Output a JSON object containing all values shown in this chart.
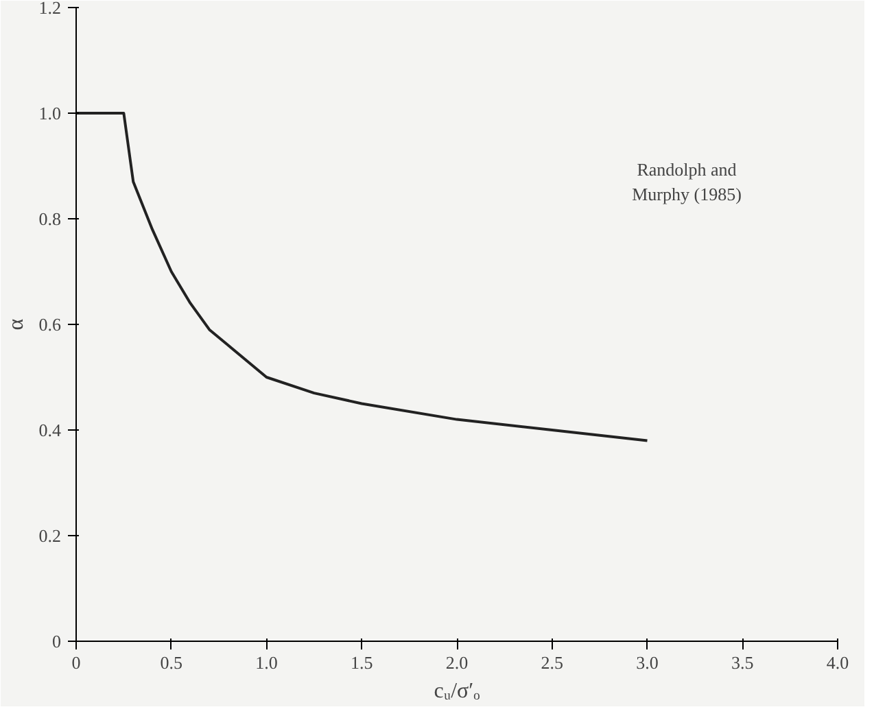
{
  "chart_data": {
    "type": "line",
    "xlabel": "cᵤ/σ′ₒ",
    "ylabel": "α",
    "x": [
      0,
      0.25,
      0.3,
      0.4,
      0.5,
      0.6,
      0.7,
      0.8,
      1.0,
      1.25,
      1.5,
      2.0,
      2.5,
      3.0
    ],
    "series": [
      {
        "color": "#222222",
        "values": [
          1.0,
          1.0,
          0.87,
          0.78,
          0.7,
          0.64,
          0.59,
          0.56,
          0.5,
          0.47,
          0.45,
          0.42,
          0.4,
          0.38
        ]
      }
    ],
    "xlim": [
      0,
      4
    ],
    "ylim": [
      0,
      1.2
    ],
    "xticks": [
      0,
      {
        "value": 0.5,
        "label": "0.5"
      },
      {
        "value": 1,
        "label": "1.0"
      },
      {
        "value": 1.5,
        "label": "1.5"
      },
      {
        "value": 2,
        "label": "2.0"
      },
      {
        "value": 2.5,
        "label": "2.5"
      },
      {
        "value": 3,
        "label": "3.0"
      },
      {
        "value": 3.5,
        "label": "3.5"
      },
      {
        "value": 4,
        "label": "4.0"
      }
    ],
    "yticks": [
      0,
      {
        "value": 0.2,
        "label": "0.2"
      },
      {
        "value": 0.4,
        "label": "0.4"
      },
      {
        "value": 0.6,
        "label": "0.6"
      },
      {
        "value": 0.8,
        "label": "0.8"
      },
      {
        "value": 1,
        "label": "1.0"
      },
      {
        "value": 1.2,
        "label": "1.2"
      }
    ],
    "annotations": [
      "Randolph and\nMurphy (1985)"
    ],
    "grid": false,
    "line_style": "solid",
    "marker": "none"
  }
}
